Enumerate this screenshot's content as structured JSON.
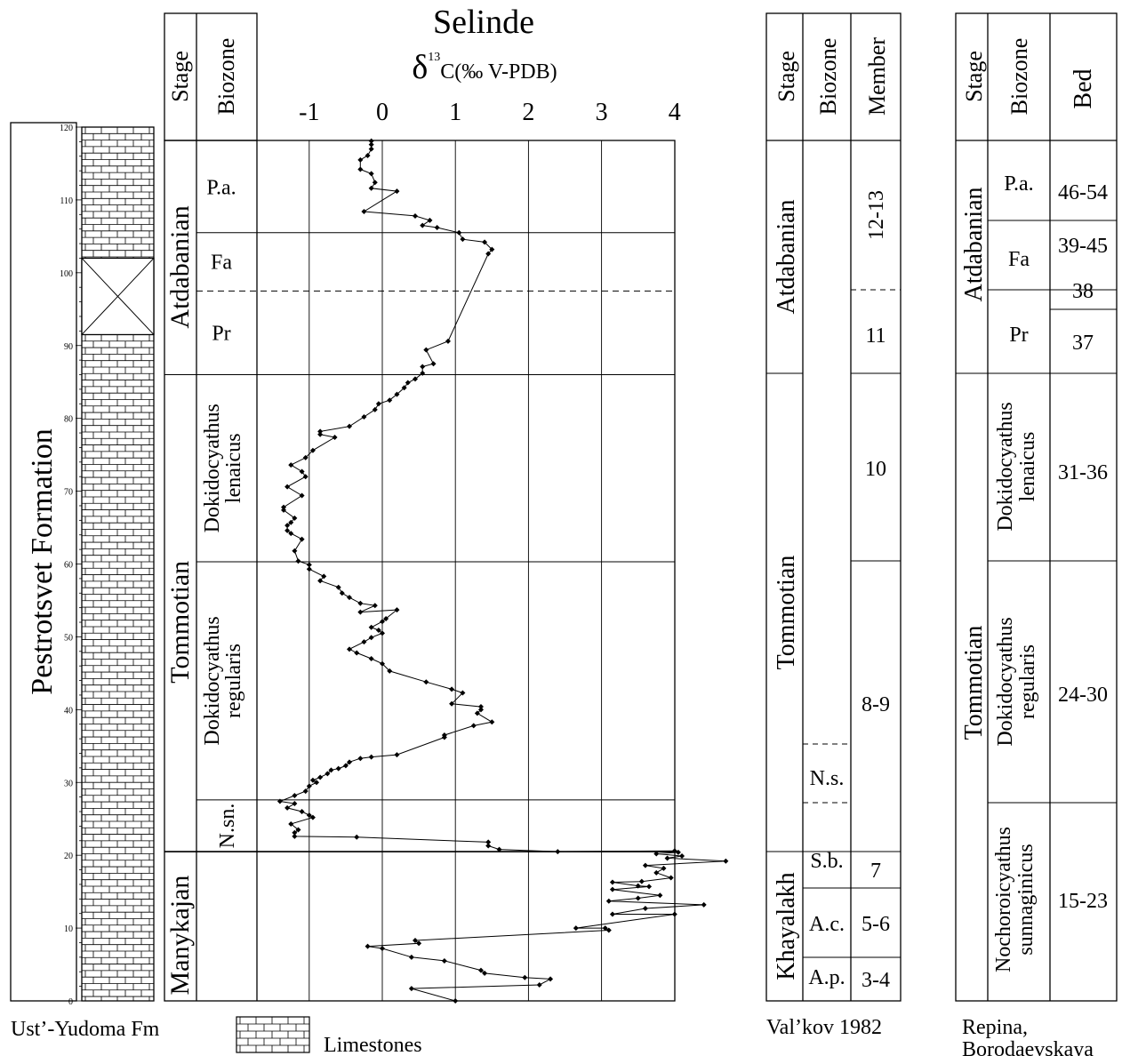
{
  "title": "Selinde",
  "xlabel": {
    "delta": "δ",
    "sup": "13",
    "rest": "C(‰ V-PDB)"
  },
  "formation_label": "Pestrotsvet Formation",
  "underlying_label": "Ust’-Yudoma Fm",
  "legend_label": "Limestones",
  "col_headers": {
    "stage": "Stage",
    "biozone": "Biozone",
    "member": "Member",
    "bed": "Bed"
  },
  "main_stages": [
    {
      "label": "Atdabanian",
      "from": 86,
      "to": 118
    },
    {
      "label": "Tommotian",
      "from": 20.5,
      "to": 86
    },
    {
      "label": "Manykajan",
      "from": 0,
      "to": 20.5
    }
  ],
  "main_biozones": [
    {
      "label": "P.a.",
      "from": 105.5,
      "to": 118,
      "lines": [
        "P.a."
      ]
    },
    {
      "label": "Fa",
      "from": 97.5,
      "to": 105.5,
      "lines": [
        "Fa"
      ]
    },
    {
      "label": "Pr",
      "from": 86,
      "to": 97.5,
      "lines": [
        "Pr"
      ]
    },
    {
      "label": "Dokidocyathus lenaicus",
      "from": 60.3,
      "to": 86,
      "lines": [
        "Dokidocyathus",
        "lenaicus"
      ]
    },
    {
      "label": "Dokidocyathus regularis",
      "from": 27.6,
      "to": 60.3,
      "lines": [
        "Dokidocyathus",
        "regularis"
      ]
    },
    {
      "label": "N.sn.",
      "from": 20.5,
      "to": 27.6,
      "lines": [
        "N.sn."
      ]
    },
    {
      "label": "",
      "from": 0,
      "to": 20.5,
      "lines": []
    }
  ],
  "valkov": {
    "caption": "Val’kov 1982",
    "stages": [
      {
        "label": "Atdabanian",
        "from": 86,
        "to": 118
      },
      {
        "label": "Tommotian",
        "from": 20.5,
        "to": 86
      },
      {
        "label": "Khayalakh",
        "from": 0,
        "to": 20.5
      }
    ],
    "biozones": [
      "N.s.",
      "S.b.",
      "A.c.",
      "A.p."
    ],
    "members": [
      "12-13",
      "11",
      "10",
      "8-9",
      "7",
      "5-6",
      "3-4"
    ]
  },
  "repina": {
    "caption_lines": [
      "Repina,",
      "Borodaevskaya"
    ],
    "stages": [
      {
        "label": "Atdabanian",
        "from": 86,
        "to": 118
      },
      {
        "label": "Tommotian",
        "from": 0,
        "to": 86
      }
    ],
    "biozones": [
      {
        "lines": [
          "P.a."
        ]
      },
      {
        "lines": [
          "Fa"
        ]
      },
      {
        "lines": [
          "Pr"
        ]
      },
      {
        "lines": [
          "Dokidocyathus",
          "lenaicus"
        ]
      },
      {
        "lines": [
          "Dokidocyathus",
          "regularis"
        ]
      },
      {
        "lines": [
          "Nochoroicyathus",
          "sunnaginicus"
        ]
      }
    ],
    "beds": [
      "46-54",
      "39-45",
      "38",
      "37",
      "31-36",
      "24-30",
      "15-23"
    ]
  },
  "colors": {
    "line": "#000000",
    "background": "#ffffff"
  },
  "chart_data": {
    "type": "line",
    "title": "Selinde",
    "xlabel": "δ13C(‰ V-PDB)",
    "ylabel": "",
    "xlim": [
      -2,
      4
    ],
    "ylim": [
      0,
      120
    ],
    "x_ticks": [
      -1,
      0,
      1,
      2,
      3,
      4
    ],
    "y_ticks": [
      0,
      10,
      20,
      30,
      40,
      50,
      60,
      70,
      80,
      90,
      100,
      110,
      120
    ],
    "gap_interval": [
      91.5,
      102
    ],
    "series": [
      {
        "points": [
          [
            1.0,
            0.0
          ],
          [
            0.4,
            1.7
          ],
          [
            2.15,
            2.2
          ],
          [
            2.3,
            3.0
          ],
          [
            1.95,
            3.2
          ],
          [
            1.4,
            3.8
          ],
          [
            1.35,
            4.2
          ],
          [
            0.85,
            5.5
          ],
          [
            0.4,
            6.0
          ],
          [
            0.0,
            7.2
          ],
          [
            -0.2,
            7.5
          ],
          [
            0.5,
            7.9
          ],
          [
            0.45,
            8.3
          ],
          [
            3.1,
            9.7
          ],
          [
            3.05,
            10.0
          ],
          [
            2.65,
            10.0
          ],
          [
            4.0,
            11.9
          ],
          [
            3.15,
            11.9
          ],
          [
            3.6,
            12.7
          ],
          [
            4.4,
            13.2
          ],
          [
            3.1,
            13.7
          ],
          [
            3.5,
            14.1
          ],
          [
            3.8,
            14.5
          ],
          [
            3.15,
            15.3
          ],
          [
            3.65,
            15.7
          ],
          [
            3.5,
            15.8
          ],
          [
            3.15,
            16.3
          ],
          [
            3.55,
            16.4
          ],
          [
            3.95,
            16.9
          ],
          [
            3.75,
            17.6
          ],
          [
            3.85,
            18.2
          ],
          [
            3.6,
            18.6
          ],
          [
            4.7,
            19.2
          ],
          [
            3.9,
            19.6
          ],
          [
            4.1,
            19.9
          ],
          [
            3.75,
            20.2
          ],
          [
            4.05,
            20.4
          ],
          [
            4.0,
            20.6
          ],
          [
            2.4,
            20.5
          ],
          [
            1.6,
            20.8
          ],
          [
            1.45,
            21.3
          ],
          [
            1.45,
            21.8
          ],
          [
            -0.35,
            22.5
          ],
          [
            -1.2,
            22.6
          ],
          [
            -1.2,
            23.1
          ],
          [
            -1.15,
            23.5
          ],
          [
            -1.25,
            24.3
          ],
          [
            -0.95,
            25.2
          ],
          [
            -1.0,
            25.5
          ],
          [
            -1.1,
            26.0
          ],
          [
            -1.3,
            26.5
          ],
          [
            -1.2,
            27.1
          ],
          [
            -1.4,
            27.4
          ],
          [
            -1.2,
            28.2
          ],
          [
            -1.05,
            28.8
          ],
          [
            -1.0,
            29.5
          ],
          [
            -0.9,
            30.0
          ],
          [
            -0.95,
            30.3
          ],
          [
            -0.85,
            30.7
          ],
          [
            -0.75,
            31.2
          ],
          [
            -0.7,
            31.7
          ],
          [
            -0.6,
            31.9
          ],
          [
            -0.5,
            32.3
          ],
          [
            -0.45,
            32.8
          ],
          [
            -0.3,
            33.3
          ],
          [
            -0.15,
            33.5
          ],
          [
            0.2,
            33.8
          ],
          [
            0.85,
            36.2
          ],
          [
            0.85,
            36.5
          ],
          [
            1.25,
            37.8
          ],
          [
            1.5,
            38.3
          ],
          [
            1.3,
            39.5
          ],
          [
            1.35,
            40.0
          ],
          [
            1.35,
            40.4
          ],
          [
            0.95,
            40.8
          ],
          [
            1.1,
            42.3
          ],
          [
            0.95,
            42.8
          ],
          [
            0.6,
            43.8
          ],
          [
            0.1,
            45.3
          ],
          [
            0.0,
            46.3
          ],
          [
            -0.15,
            47.0
          ],
          [
            -0.35,
            47.8
          ],
          [
            -0.45,
            48.3
          ],
          [
            -0.25,
            49.3
          ],
          [
            -0.15,
            49.9
          ],
          [
            0.0,
            50.5
          ],
          [
            -0.05,
            50.9
          ],
          [
            -0.15,
            51.3
          ],
          [
            0.0,
            52.1
          ],
          [
            0.05,
            52.5
          ],
          [
            0.2,
            53.7
          ],
          [
            -0.3,
            53.4
          ],
          [
            -0.1,
            54.3
          ],
          [
            -0.3,
            54.6
          ],
          [
            -0.45,
            55.4
          ],
          [
            -0.55,
            56.0
          ],
          [
            -0.6,
            56.8
          ],
          [
            -0.85,
            57.7
          ],
          [
            -0.8,
            58.3
          ],
          [
            -1.0,
            59.3
          ],
          [
            -1.0,
            59.9
          ],
          [
            -1.15,
            60.4
          ],
          [
            -1.2,
            61.8
          ],
          [
            -1.1,
            63.4
          ],
          [
            -1.25,
            64.2
          ],
          [
            -1.3,
            64.6
          ],
          [
            -1.3,
            65.3
          ],
          [
            -1.25,
            65.7
          ],
          [
            -1.2,
            66.3
          ],
          [
            -1.35,
            67.4
          ],
          [
            -1.35,
            67.8
          ],
          [
            -1.1,
            69.4
          ],
          [
            -1.3,
            70.6
          ],
          [
            -1.05,
            72.0
          ],
          [
            -1.1,
            72.7
          ],
          [
            -1.25,
            73.6
          ],
          [
            -1.05,
            74.6
          ],
          [
            -0.95,
            75.6
          ],
          [
            -0.65,
            77.4
          ],
          [
            -0.85,
            77.8
          ],
          [
            -0.85,
            78.2
          ],
          [
            -0.45,
            78.9
          ],
          [
            -0.25,
            80.2
          ],
          [
            -0.1,
            81.2
          ],
          [
            -0.05,
            82.0
          ],
          [
            0.1,
            82.5
          ],
          [
            0.2,
            83.3
          ],
          [
            0.3,
            84.2
          ],
          [
            0.35,
            84.9
          ],
          [
            0.45,
            85.4
          ],
          [
            0.55,
            86.2
          ],
          [
            0.55,
            87.1
          ],
          [
            0.7,
            87.5
          ],
          [
            0.6,
            89.4
          ],
          [
            0.9,
            90.6
          ],
          [
            1.45,
            102.6
          ],
          [
            1.5,
            103.2
          ],
          [
            1.4,
            104.2
          ],
          [
            1.1,
            104.6
          ],
          [
            1.05,
            105.5
          ],
          [
            0.75,
            106.2
          ],
          [
            0.55,
            106.5
          ],
          [
            0.65,
            107.2
          ],
          [
            0.45,
            107.8
          ],
          [
            -0.25,
            108.4
          ],
          [
            0.2,
            111.2
          ],
          [
            -0.15,
            111.6
          ],
          [
            -0.1,
            112.4
          ],
          [
            -0.15,
            113.6
          ],
          [
            -0.3,
            114.2
          ],
          [
            -0.3,
            115.5
          ],
          [
            -0.2,
            116.1
          ],
          [
            -0.15,
            117.0
          ],
          [
            -0.15,
            117.6
          ],
          [
            -0.15,
            118.1
          ]
        ]
      }
    ]
  }
}
